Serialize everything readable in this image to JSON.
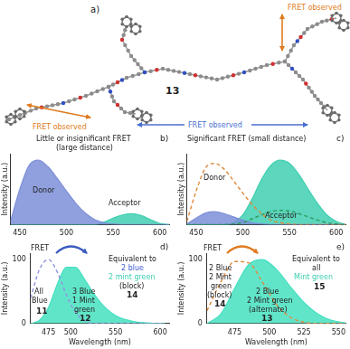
{
  "panel_a": {
    "label": "a)",
    "compound": "13",
    "annotations": [
      {
        "text": "FRET observed",
        "color": "#e07b20"
      },
      {
        "text": "FRET observed",
        "color": "#e07b20"
      },
      {
        "text": "FRET observed",
        "color": "#4a6fd0"
      }
    ]
  },
  "chart_data": [
    {
      "type": "line",
      "title": "b)",
      "y_label": "Intensity (a.u.)",
      "x": [
        440,
        450,
        460,
        470,
        480,
        490,
        500,
        510,
        520,
        530,
        540,
        550,
        560,
        570,
        580,
        590,
        600,
        610
      ],
      "series": [
        {
          "type": "area",
          "color": "#7d8fd8",
          "line_style": "solid",
          "values": [
            5,
            55,
            92,
            100,
            90,
            72,
            52,
            33,
            18,
            8,
            3,
            1,
            0,
            0,
            0,
            0,
            0,
            0
          ]
        },
        {
          "type": "area",
          "color": "#3fcfb0",
          "line_style": "solid",
          "values": [
            0,
            0,
            0,
            0,
            0,
            0,
            0,
            0,
            0,
            0,
            4,
            10,
            15,
            17,
            14,
            8,
            2,
            0
          ]
        }
      ],
      "xlim": [
        440,
        610
      ],
      "xticks": [
        450,
        500,
        550,
        600
      ],
      "ylim": [
        0,
        110
      ],
      "yticks": [],
      "grid": false,
      "tick_labels": "x",
      "annotations": [
        {
          "text": "Little or insignificant FRET"
        },
        {
          "text": "(large distance)"
        },
        {
          "text": "Donor"
        },
        {
          "text": "Acceptor"
        }
      ]
    },
    {
      "type": "line",
      "title": "c)",
      "y_label": "Intensity (a.u.)",
      "x": [
        440,
        450,
        460,
        470,
        480,
        490,
        500,
        510,
        520,
        530,
        540,
        550,
        560,
        570,
        580,
        590,
        600,
        610
      ],
      "series": [
        {
          "type": "line",
          "color": "#e08a3c",
          "line_style": "dashed",
          "values": [
            5,
            52,
            88,
            95,
            86,
            68,
            49,
            31,
            17,
            7,
            3,
            1,
            0,
            0,
            0,
            0,
            0,
            0
          ]
        },
        {
          "type": "area",
          "color": "#7d8fd8",
          "line_style": "solid",
          "values": [
            1,
            10,
            18,
            20,
            17,
            12,
            7,
            3,
            1,
            0,
            0,
            0,
            0,
            0,
            0,
            0,
            0,
            0
          ]
        },
        {
          "type": "area",
          "color": "#3fcfb0",
          "line_style": "solid",
          "values": [
            0,
            0,
            0,
            0,
            0,
            3,
            15,
            40,
            70,
            92,
            100,
            95,
            78,
            55,
            33,
            15,
            5,
            0
          ]
        },
        {
          "type": "line",
          "color": "#2f9a60",
          "line_style": "dashed",
          "values": [
            0,
            0,
            0,
            0,
            0,
            1,
            3,
            9,
            15,
            20,
            22,
            21,
            17,
            12,
            7,
            3,
            1,
            0
          ]
        }
      ],
      "xlim": [
        440,
        610
      ],
      "xticks": [
        450,
        500,
        550,
        600
      ],
      "ylim": [
        0,
        110
      ],
      "yticks": [],
      "grid": false,
      "tick_labels": "x",
      "annotations": [
        {
          "text": "Significant FRET (small distance)"
        },
        {
          "text": "Donor"
        },
        {
          "text": "Acceptor"
        }
      ]
    },
    {
      "type": "line",
      "title": "d)",
      "x_label": "Wavelength (nm)",
      "y_label": "Intensity (a.u.)",
      "x": [
        455,
        465,
        475,
        485,
        495,
        505,
        515,
        525,
        535,
        545,
        555,
        565,
        575,
        585,
        595,
        605
      ],
      "series": [
        {
          "type": "line",
          "color": "#8f95e0",
          "line_style": "dashed",
          "values": [
            40,
            85,
            100,
            80,
            45,
            18,
            5,
            0,
            0,
            0,
            0,
            0,
            0,
            0,
            0,
            0
          ]
        },
        {
          "type": "area",
          "color": "#45e0c0",
          "line_style": "solid",
          "values": [
            0,
            5,
            25,
            62,
            88,
            88,
            70,
            48,
            30,
            17,
            9,
            5,
            2,
            1,
            0,
            0
          ]
        }
      ],
      "xlim": [
        455,
        610
      ],
      "xticks": [
        475,
        500,
        550,
        600
      ],
      "ylim": [
        0,
        110
      ],
      "yticks": [
        0,
        100
      ],
      "grid": false,
      "annotations": [
        {
          "text": "FRET"
        },
        {
          "text": "Equivalent to"
        },
        {
          "text": "2 blue",
          "color": "#3b5bd0"
        },
        {
          "text": "2 mint green",
          "color": "#3fcfb0"
        },
        {
          "text": "(block)"
        },
        {
          "text": "14"
        },
        {
          "text": "All"
        },
        {
          "text": "Blue"
        },
        {
          "text": "11"
        },
        {
          "text": "3 Blue"
        },
        {
          "text": "1 Mint"
        },
        {
          "text": "green"
        },
        {
          "text": "12"
        }
      ]
    },
    {
      "type": "line",
      "title": "e)",
      "x_label": "Wavelength (nm)",
      "y_label": "Intensity (a.u.)",
      "x": [
        455,
        465,
        475,
        485,
        495,
        505,
        515,
        525,
        535,
        545,
        555
      ],
      "series": [
        {
          "type": "line",
          "color": "#e08a3c",
          "line_style": "dashed",
          "values": [
            20,
            65,
            97,
            95,
            65,
            30,
            10,
            2,
            0,
            0,
            0
          ]
        },
        {
          "type": "area",
          "color": "#45e0c0",
          "line_style": "solid",
          "values": [
            0,
            15,
            55,
            92,
            100,
            85,
            58,
            33,
            15,
            5,
            1
          ]
        }
      ],
      "xlim": [
        455,
        555
      ],
      "xticks": [
        475,
        500,
        525,
        550
      ],
      "ylim": [
        0,
        110
      ],
      "yticks": [
        0,
        100
      ],
      "grid": false,
      "annotations": [
        {
          "text": "FRET"
        },
        {
          "text": "Equivalent to"
        },
        {
          "text": "all"
        },
        {
          "text": "Mint green",
          "color": "#3fcfb0"
        },
        {
          "text": "15"
        },
        {
          "text": "2 Blue"
        },
        {
          "text": "2 Mint"
        },
        {
          "text": "green"
        },
        {
          "text": "(block)"
        },
        {
          "text": "14"
        },
        {
          "text": "2 Blue"
        },
        {
          "text": "2 Mint green"
        },
        {
          "text": "(alternate)"
        },
        {
          "text": "13"
        }
      ]
    }
  ]
}
